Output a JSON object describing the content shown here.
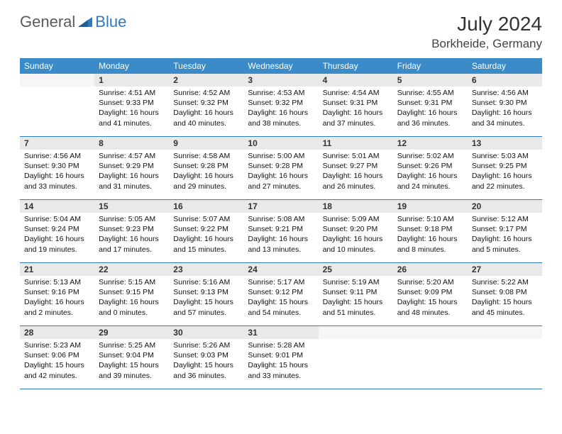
{
  "brand": {
    "word1": "General",
    "word2": "Blue"
  },
  "title": "July 2024",
  "location": "Borkheide, Germany",
  "colors": {
    "header_bg": "#3b8bc9",
    "header_text": "#ffffff",
    "daynum_bg": "#e9e9e9",
    "week_divider": "#2e7bbf",
    "logo_gray": "#5a5a5a",
    "logo_blue": "#2e7bbf"
  },
  "layout": {
    "columns": 7,
    "weeks": 5,
    "body_fontsize": 10.5,
    "dow_fontsize": 12,
    "title_fontsize": 28,
    "location_fontsize": 17
  },
  "dow": [
    "Sunday",
    "Monday",
    "Tuesday",
    "Wednesday",
    "Thursday",
    "Friday",
    "Saturday"
  ],
  "grid": [
    [
      {
        "n": "",
        "sunrise": "",
        "sunset": "",
        "daylight": ""
      },
      {
        "n": "1",
        "sunrise": "4:51 AM",
        "sunset": "9:33 PM",
        "daylight": "16 hours and 41 minutes."
      },
      {
        "n": "2",
        "sunrise": "4:52 AM",
        "sunset": "9:32 PM",
        "daylight": "16 hours and 40 minutes."
      },
      {
        "n": "3",
        "sunrise": "4:53 AM",
        "sunset": "9:32 PM",
        "daylight": "16 hours and 38 minutes."
      },
      {
        "n": "4",
        "sunrise": "4:54 AM",
        "sunset": "9:31 PM",
        "daylight": "16 hours and 37 minutes."
      },
      {
        "n": "5",
        "sunrise": "4:55 AM",
        "sunset": "9:31 PM",
        "daylight": "16 hours and 36 minutes."
      },
      {
        "n": "6",
        "sunrise": "4:56 AM",
        "sunset": "9:30 PM",
        "daylight": "16 hours and 34 minutes."
      }
    ],
    [
      {
        "n": "7",
        "sunrise": "4:56 AM",
        "sunset": "9:30 PM",
        "daylight": "16 hours and 33 minutes."
      },
      {
        "n": "8",
        "sunrise": "4:57 AM",
        "sunset": "9:29 PM",
        "daylight": "16 hours and 31 minutes."
      },
      {
        "n": "9",
        "sunrise": "4:58 AM",
        "sunset": "9:28 PM",
        "daylight": "16 hours and 29 minutes."
      },
      {
        "n": "10",
        "sunrise": "5:00 AM",
        "sunset": "9:28 PM",
        "daylight": "16 hours and 27 minutes."
      },
      {
        "n": "11",
        "sunrise": "5:01 AM",
        "sunset": "9:27 PM",
        "daylight": "16 hours and 26 minutes."
      },
      {
        "n": "12",
        "sunrise": "5:02 AM",
        "sunset": "9:26 PM",
        "daylight": "16 hours and 24 minutes."
      },
      {
        "n": "13",
        "sunrise": "5:03 AM",
        "sunset": "9:25 PM",
        "daylight": "16 hours and 22 minutes."
      }
    ],
    [
      {
        "n": "14",
        "sunrise": "5:04 AM",
        "sunset": "9:24 PM",
        "daylight": "16 hours and 19 minutes."
      },
      {
        "n": "15",
        "sunrise": "5:05 AM",
        "sunset": "9:23 PM",
        "daylight": "16 hours and 17 minutes."
      },
      {
        "n": "16",
        "sunrise": "5:07 AM",
        "sunset": "9:22 PM",
        "daylight": "16 hours and 15 minutes."
      },
      {
        "n": "17",
        "sunrise": "5:08 AM",
        "sunset": "9:21 PM",
        "daylight": "16 hours and 13 minutes."
      },
      {
        "n": "18",
        "sunrise": "5:09 AM",
        "sunset": "9:20 PM",
        "daylight": "16 hours and 10 minutes."
      },
      {
        "n": "19",
        "sunrise": "5:10 AM",
        "sunset": "9:18 PM",
        "daylight": "16 hours and 8 minutes."
      },
      {
        "n": "20",
        "sunrise": "5:12 AM",
        "sunset": "9:17 PM",
        "daylight": "16 hours and 5 minutes."
      }
    ],
    [
      {
        "n": "21",
        "sunrise": "5:13 AM",
        "sunset": "9:16 PM",
        "daylight": "16 hours and 2 minutes."
      },
      {
        "n": "22",
        "sunrise": "5:15 AM",
        "sunset": "9:15 PM",
        "daylight": "16 hours and 0 minutes."
      },
      {
        "n": "23",
        "sunrise": "5:16 AM",
        "sunset": "9:13 PM",
        "daylight": "15 hours and 57 minutes."
      },
      {
        "n": "24",
        "sunrise": "5:17 AM",
        "sunset": "9:12 PM",
        "daylight": "15 hours and 54 minutes."
      },
      {
        "n": "25",
        "sunrise": "5:19 AM",
        "sunset": "9:11 PM",
        "daylight": "15 hours and 51 minutes."
      },
      {
        "n": "26",
        "sunrise": "5:20 AM",
        "sunset": "9:09 PM",
        "daylight": "15 hours and 48 minutes."
      },
      {
        "n": "27",
        "sunrise": "5:22 AM",
        "sunset": "9:08 PM",
        "daylight": "15 hours and 45 minutes."
      }
    ],
    [
      {
        "n": "28",
        "sunrise": "5:23 AM",
        "sunset": "9:06 PM",
        "daylight": "15 hours and 42 minutes."
      },
      {
        "n": "29",
        "sunrise": "5:25 AM",
        "sunset": "9:04 PM",
        "daylight": "15 hours and 39 minutes."
      },
      {
        "n": "30",
        "sunrise": "5:26 AM",
        "sunset": "9:03 PM",
        "daylight": "15 hours and 36 minutes."
      },
      {
        "n": "31",
        "sunrise": "5:28 AM",
        "sunset": "9:01 PM",
        "daylight": "15 hours and 33 minutes."
      },
      {
        "n": "",
        "sunrise": "",
        "sunset": "",
        "daylight": ""
      },
      {
        "n": "",
        "sunrise": "",
        "sunset": "",
        "daylight": ""
      },
      {
        "n": "",
        "sunrise": "",
        "sunset": "",
        "daylight": ""
      }
    ]
  ],
  "labels": {
    "sunrise_prefix": "Sunrise: ",
    "sunset_prefix": "Sunset: ",
    "daylight_prefix": "Daylight: "
  }
}
